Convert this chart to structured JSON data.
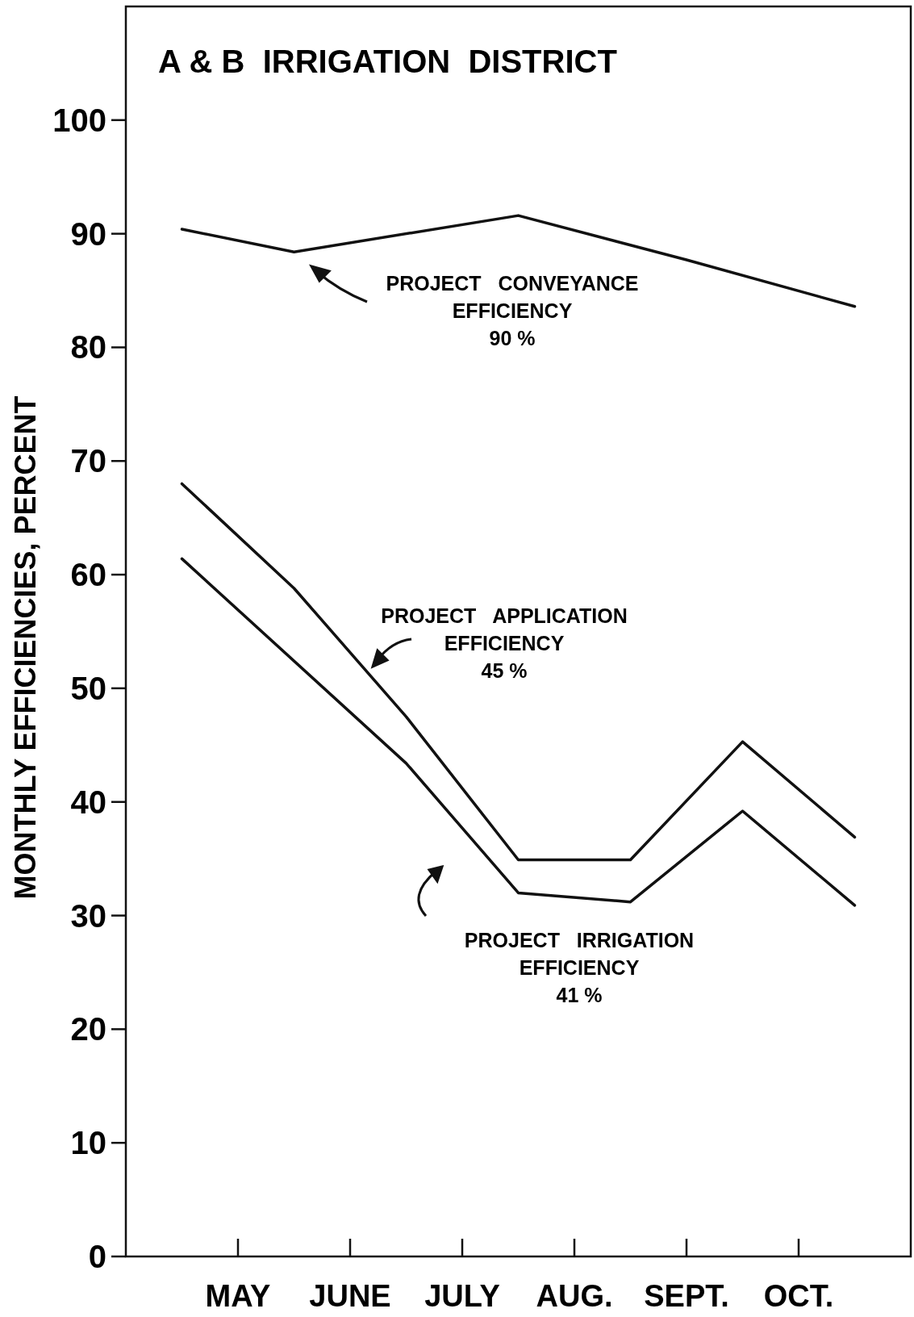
{
  "chart_data": {
    "type": "line",
    "title": "A & B  IRRIGATION  DISTRICT",
    "ylabel": "MONTHLY  EFFICIENCIES,  PERCENT",
    "categories": [
      null,
      "MAY",
      null,
      "JUNE",
      null,
      "JULY",
      null,
      "AUG.",
      null,
      "SEPT.",
      null,
      "OCT.",
      null
    ],
    "ylim": [
      0,
      110
    ],
    "yticks": [
      0,
      10,
      20,
      30,
      40,
      50,
      60,
      70,
      80,
      90,
      100
    ],
    "marker": "none",
    "line_style": "solid",
    "series": [
      {
        "color": "#111111",
        "values": [
          90.4,
          null,
          88.4,
          null,
          null,
          null,
          91.6,
          null,
          null,
          87.7,
          null,
          null,
          83.6
        ]
      },
      {
        "color": "#111111",
        "values": [
          68.0,
          null,
          58.8,
          null,
          47.5,
          null,
          34.9,
          null,
          34.9,
          null,
          45.3,
          null,
          36.9
        ]
      },
      {
        "color": "#111111",
        "values": [
          61.4,
          null,
          null,
          null,
          43.4,
          null,
          32.0,
          null,
          31.2,
          null,
          39.2,
          null,
          30.9
        ]
      }
    ],
    "annotations": [
      "PROJECT   CONVEYANCE\nEFFICIENCY\n90 %",
      "PROJECT   APPLICATION\nEFFICIENCY\n45 %",
      "PROJECT   IRRIGATION\nEFFICIENCY\n41 %"
    ]
  }
}
